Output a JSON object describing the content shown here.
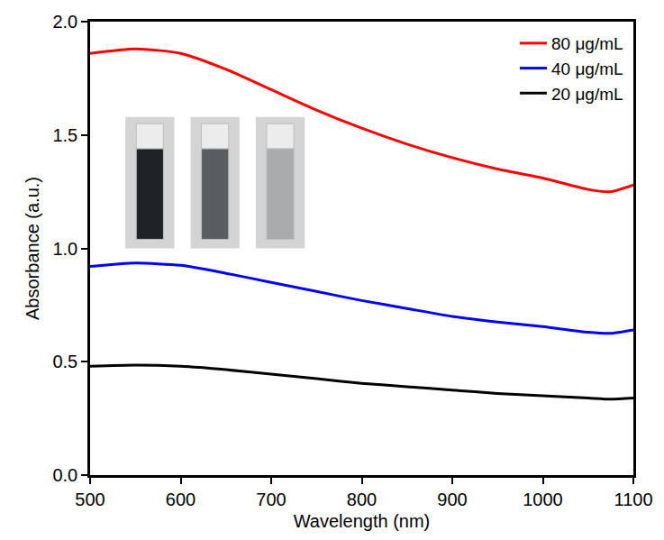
{
  "chart_data": {
    "type": "line",
    "x_label": "Wavelength (nm)",
    "y_label": "Absorbance (a.u.)",
    "x": [
      500,
      550,
      600,
      650,
      700,
      750,
      800,
      850,
      900,
      950,
      1000,
      1050,
      1075,
      1100
    ],
    "series": [
      {
        "name": "80 μg/mL",
        "color": "#ff0000",
        "line_style": "solid",
        "values": [
          1.86,
          1.88,
          1.86,
          1.79,
          1.7,
          1.61,
          1.53,
          1.46,
          1.4,
          1.35,
          1.31,
          1.26,
          1.25,
          1.28
        ]
      },
      {
        "name": "40 μg/mL",
        "color": "#0000ff",
        "line_style": "solid",
        "values": [
          0.92,
          0.935,
          0.925,
          0.89,
          0.85,
          0.81,
          0.77,
          0.735,
          0.7,
          0.675,
          0.655,
          0.63,
          0.625,
          0.64
        ]
      },
      {
        "name": "20 μg/mL",
        "color": "#000000",
        "line_style": "solid",
        "values": [
          0.48,
          0.485,
          0.48,
          0.465,
          0.445,
          0.425,
          0.405,
          0.39,
          0.375,
          0.36,
          0.35,
          0.34,
          0.335,
          0.34
        ]
      }
    ],
    "xlim": [
      500,
      1100
    ],
    "xticks": [
      500,
      600,
      700,
      800,
      900,
      1000,
      1100
    ],
    "ylim": [
      0,
      2.0
    ],
    "yticks": [
      {
        "value": 0,
        "label": "0.0"
      },
      {
        "value": 0.5,
        "label": "0.5"
      },
      {
        "value": 1.0,
        "label": "1.0"
      },
      {
        "value": 1.5,
        "label": "1.5"
      },
      {
        "value": 2.0,
        "label": "2.0"
      }
    ],
    "grid": false,
    "legend": "upper right"
  }
}
